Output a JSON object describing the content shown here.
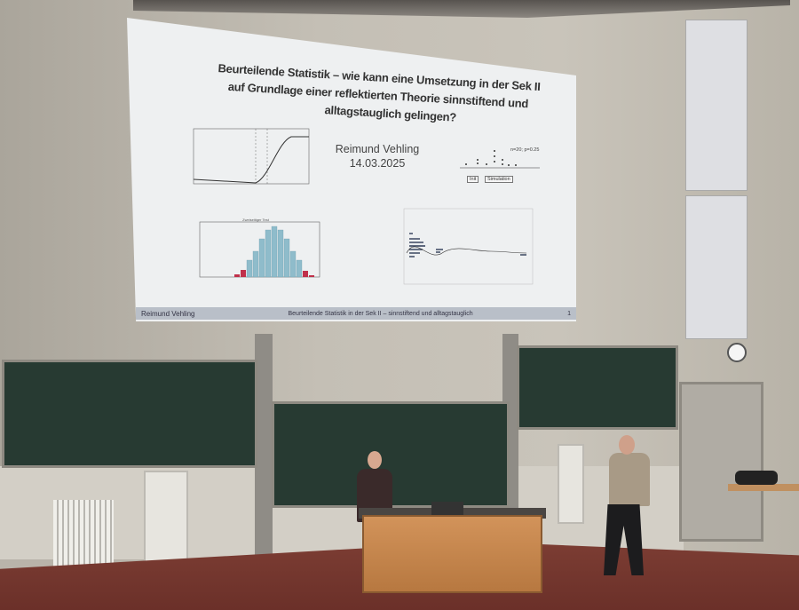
{
  "slide": {
    "title_lines": [
      "Beurteilende Statistik – wie kann eine Umsetzung in der Sek II",
      "auf Grundlage einer reflektierten Theorie sinnstiftend und",
      "alltagstauglich gelingen?"
    ],
    "author": "Reimund Vehling",
    "date": "14.03.2025",
    "sim_label": "n=20; p=0.25",
    "init_button": "Init",
    "simulation_button": "Simulation",
    "histogram_title": "Zweiseitiger Test",
    "footer_left": "Reimund Vehling",
    "footer_center": "Beurteilende Statistik in der Sek II – sinnstiftend und alltagstauglich",
    "page_number": "1"
  },
  "colors": {
    "chalkboard": "#273a32",
    "desk": "#c98a4f",
    "floor": "#7a3a30",
    "histogram_bar": "#8fbccb",
    "rejection_bar": "#c0304a"
  }
}
